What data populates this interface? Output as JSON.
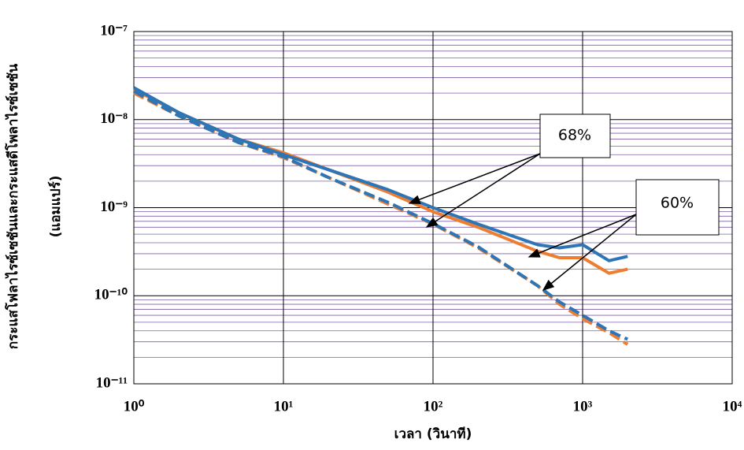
{
  "chart_data": {
    "type": "line",
    "x_label": "เวลา (วินาที)",
    "y_label": [
      "กระแสโฟลาไรซ์เซชันและกระแสดีโพลาไรซ์เซชัน",
      "(แอมแปร์)"
    ],
    "x_log": true,
    "y_log": true,
    "grid": true,
    "minor_grid": true,
    "xlim": [
      1,
      10000
    ],
    "xticks": [
      {
        "value": 1,
        "label": "10⁰"
      },
      {
        "value": 10,
        "label": "10¹"
      },
      {
        "value": 100,
        "label": "10²"
      },
      {
        "value": 1000,
        "label": "10³"
      },
      {
        "value": 10000,
        "label": "10⁴"
      }
    ],
    "ylim": [
      1e-11,
      1e-07
    ],
    "yticks": [
      {
        "value": 1e-11,
        "label": "10⁻¹¹"
      },
      {
        "value": 1e-10,
        "label": "10⁻¹⁰"
      },
      {
        "value": 1e-09,
        "label": "10⁻⁹"
      },
      {
        "value": 1e-08,
        "label": "10⁻⁸"
      },
      {
        "value": 1e-07,
        "label": "10⁻⁷"
      }
    ],
    "x": [
      1,
      2,
      5,
      10,
      20,
      50,
      100,
      200,
      500,
      700,
      1000,
      1500,
      2000
    ],
    "series": [
      {
        "color": "#ed7d31",
        "dash": false,
        "values": [
          2.2e-08,
          1.2e-08,
          6e-09,
          4.2e-09,
          2.7e-09,
          1.5e-09,
          9e-10,
          6e-10,
          3.2e-10,
          2.7e-10,
          2.7e-10,
          1.8e-10,
          2e-10
        ]
      },
      {
        "color": "#2e75b6",
        "dash": false,
        "values": [
          2.3e-08,
          1.2e-08,
          6e-09,
          4e-09,
          2.7e-09,
          1.6e-09,
          1e-09,
          6.5e-10,
          3.8e-10,
          3.5e-10,
          3.8e-10,
          2.5e-10,
          2.8e-10
        ]
      },
      {
        "color": "#ed7d31",
        "dash": true,
        "values": [
          2e-08,
          1.1e-08,
          5.5e-09,
          3.7e-09,
          2.2e-09,
          1.1e-09,
          6.5e-10,
          3.5e-10,
          1.3e-10,
          8e-11,
          5.5e-11,
          3.8e-11,
          2.8e-11
        ]
      },
      {
        "color": "#2e75b6",
        "dash": true,
        "values": [
          2.1e-08,
          1.1e-08,
          5.5e-09,
          3.8e-09,
          2.2e-09,
          1.15e-09,
          6.6e-10,
          3.6e-10,
          1.3e-10,
          8.5e-11,
          6e-11,
          4e-11,
          3.2e-11
        ]
      }
    ],
    "annotations": [
      {
        "text": "68%"
      },
      {
        "text": "60%"
      }
    ]
  }
}
